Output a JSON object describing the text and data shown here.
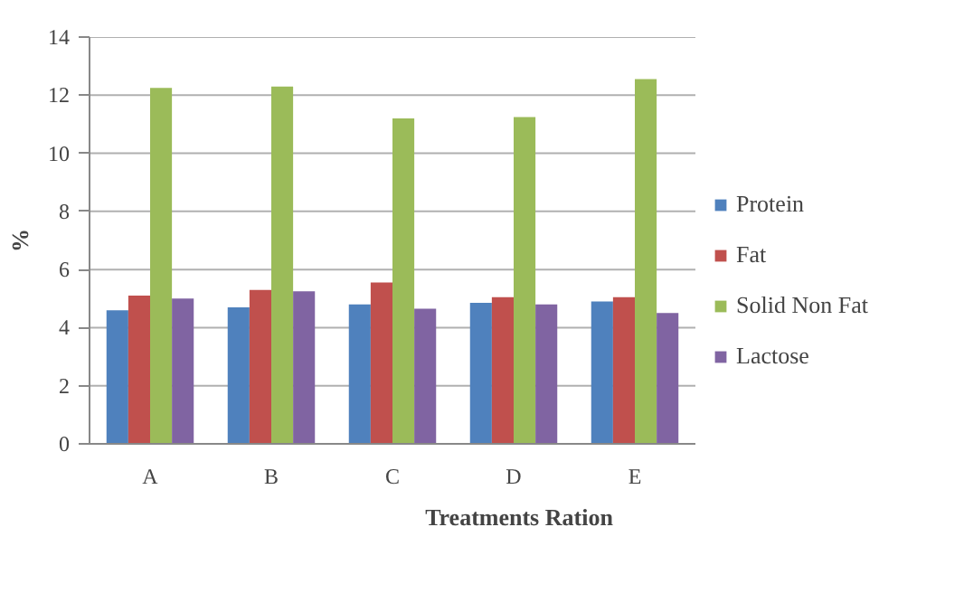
{
  "chart_data": {
    "type": "bar",
    "xlabel": "Treatments Ration",
    "ylabel": "%",
    "categories": [
      "A",
      "B",
      "C",
      "D",
      "E"
    ],
    "series": [
      {
        "name": "Protein",
        "color": "#4f81bd",
        "values": [
          4.6,
          4.7,
          4.8,
          4.85,
          4.9
        ]
      },
      {
        "name": "Fat",
        "color": "#c0504d",
        "values": [
          5.1,
          5.3,
          5.55,
          5.05,
          5.05
        ]
      },
      {
        "name": "Solid Non Fat",
        "color": "#9bbb59",
        "values": [
          12.25,
          12.3,
          11.2,
          11.25,
          12.55
        ]
      },
      {
        "name": "Lactose",
        "color": "#8064a2",
        "values": [
          5.0,
          5.25,
          4.65,
          4.8,
          4.5
        ]
      }
    ],
    "ylim": [
      0,
      14
    ],
    "yticks": [
      0,
      2,
      4,
      6,
      8,
      10,
      12,
      14
    ],
    "grid": "y",
    "legend": "right"
  }
}
